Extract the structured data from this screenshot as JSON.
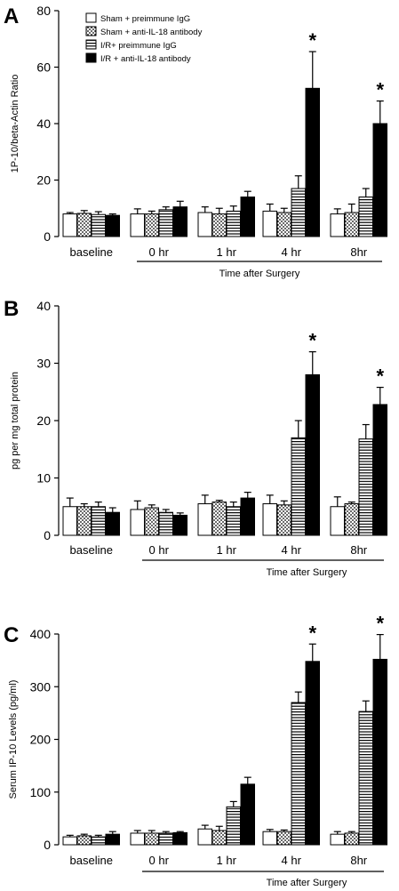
{
  "legend": [
    {
      "label": "Sham + preimmune IgG",
      "fill": "white"
    },
    {
      "label": "Sham + anti-IL-18 antibody",
      "fill": "dots"
    },
    {
      "label": "I/R+ preimmune IgG",
      "fill": "hstripes"
    },
    {
      "label": "I/R + anti-IL-18 antibody",
      "fill": "black"
    }
  ],
  "chart_data": [
    {
      "type": "bar",
      "panel": "A",
      "ylabel": "1P-10/beta-Actin Ratio",
      "xlabel": "Time after Surgery",
      "ylim": [
        0,
        80
      ],
      "yticks": [
        0,
        20,
        40,
        60,
        80
      ],
      "categories": [
        "baseline",
        "0 hr",
        "1 hr",
        "4 hr",
        "8hr"
      ],
      "series": [
        {
          "name": "Sham + preimmune IgG",
          "values": [
            8.0,
            8.0,
            8.5,
            9.0,
            8.0
          ],
          "errors": [
            0.5,
            1.8,
            2.0,
            2.5,
            1.8
          ]
        },
        {
          "name": "Sham + anti-IL-18 antibody",
          "values": [
            8.2,
            8.0,
            8.0,
            8.5,
            8.5
          ],
          "errors": [
            1.0,
            1.0,
            2.0,
            1.5,
            3.0
          ]
        },
        {
          "name": "I/R+ preimmune IgG",
          "values": [
            7.8,
            9.5,
            9.0,
            17.0,
            14.0
          ],
          "errors": [
            1.0,
            1.0,
            1.8,
            4.5,
            3.0
          ]
        },
        {
          "name": "I/R + anti-IL-18 antibody",
          "values": [
            7.5,
            10.5,
            14.0,
            52.5,
            40.0
          ],
          "errors": [
            0.5,
            2.0,
            2.0,
            13.0,
            8.0
          ]
        }
      ],
      "significance": [
        {
          "category": "4 hr",
          "label": "*"
        },
        {
          "category": "8hr",
          "label": "*"
        }
      ]
    },
    {
      "type": "bar",
      "panel": "B",
      "ylabel": "pg per mg total protein",
      "xlabel": "Time after Surgery",
      "ylim": [
        0,
        40
      ],
      "yticks": [
        0,
        10,
        20,
        30,
        40
      ],
      "categories": [
        "baseline",
        "0 hr",
        "1 hr",
        "4 hr",
        "8hr"
      ],
      "series": [
        {
          "name": "Sham + preimmune IgG",
          "values": [
            5.0,
            4.5,
            5.5,
            5.5,
            5.0
          ],
          "errors": [
            1.5,
            1.5,
            1.5,
            1.5,
            1.7
          ]
        },
        {
          "name": "Sham + anti-IL-18 antibody",
          "values": [
            5.0,
            4.8,
            5.8,
            5.3,
            5.5
          ],
          "errors": [
            0.5,
            0.5,
            0.3,
            0.7,
            0.3
          ]
        },
        {
          "name": "I/R+ preimmune IgG",
          "values": [
            5.0,
            4.0,
            5.0,
            17.0,
            16.8
          ],
          "errors": [
            0.8,
            0.5,
            0.8,
            3.0,
            2.5
          ]
        },
        {
          "name": "I/R + anti-IL-18 antibody",
          "values": [
            4.0,
            3.5,
            6.5,
            28.0,
            22.8
          ],
          "errors": [
            0.8,
            0.4,
            1.0,
            4.0,
            3.0
          ]
        }
      ],
      "significance": [
        {
          "category": "4 hr",
          "label": "*"
        },
        {
          "category": "8hr",
          "label": "*"
        }
      ]
    },
    {
      "type": "bar",
      "panel": "C",
      "ylabel": "Serum IP-10 Levels (pg/ml)",
      "xlabel": "Time after Surgery",
      "ylim": [
        0,
        400
      ],
      "yticks": [
        0,
        100,
        200,
        300,
        400
      ],
      "categories": [
        "baseline",
        "0 hr",
        "1 hr",
        "4 hr",
        "8hr"
      ],
      "series": [
        {
          "name": "Sham + preimmune IgG",
          "values": [
            15,
            22,
            30,
            25,
            20
          ],
          "errors": [
            3,
            5,
            7,
            4,
            5
          ]
        },
        {
          "name": "Sham + anti-IL-18 antibody",
          "values": [
            17,
            22,
            27,
            25,
            22
          ],
          "errors": [
            3,
            5,
            8,
            3,
            3
          ]
        },
        {
          "name": "I/R+ preimmune IgG",
          "values": [
            15,
            22,
            72,
            270,
            253
          ],
          "errors": [
            3,
            3,
            10,
            20,
            20
          ]
        },
        {
          "name": "I/R + anti-IL-18 antibody",
          "values": [
            20,
            23,
            115,
            348,
            352
          ],
          "errors": [
            5,
            2,
            13,
            33,
            47
          ]
        }
      ],
      "significance": [
        {
          "category": "4 hr",
          "label": "*"
        },
        {
          "category": "8hr",
          "label": "*"
        }
      ]
    }
  ]
}
